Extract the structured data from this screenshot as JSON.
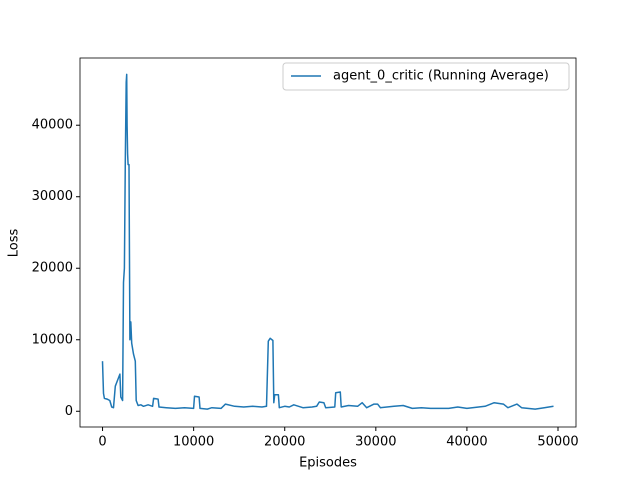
{
  "chart_data": {
    "type": "line",
    "xlabel": "Episodes",
    "ylabel": "Loss",
    "x": [
      0,
      100,
      200,
      500,
      800,
      1000,
      1200,
      1400,
      1700,
      1900,
      2000,
      2200,
      2300,
      2400,
      2500,
      2600,
      2650,
      2700,
      2750,
      2800,
      2900,
      3000,
      3100,
      3200,
      3400,
      3600,
      3700,
      3900,
      4200,
      4500,
      5000,
      5500,
      5600,
      6100,
      6200,
      7000,
      8000,
      9000,
      10000,
      10100,
      10600,
      10700,
      11500,
      12000,
      13000,
      13500,
      14500,
      15500,
      16500,
      17500,
      18000,
      18200,
      18400,
      18700,
      18800,
      18900,
      19300,
      19400,
      20000,
      20500,
      21000,
      22000,
      23000,
      23500,
      23800,
      24300,
      24500,
      25500,
      25600,
      26100,
      26200,
      27000,
      28000,
      28500,
      29000,
      29800,
      30200,
      30500,
      32000,
      33000,
      34000,
      35000,
      36000,
      38000,
      39000,
      40000,
      42000,
      43000,
      44000,
      44500,
      45500,
      46000,
      47500,
      48500,
      49500
    ],
    "series": [
      {
        "name": "agent_0_critic (Running Average)",
        "color": "#1f77b4",
        "values": [
          7000,
          2500,
          1800,
          1700,
          1500,
          600,
          500,
          3500,
          4500,
          5200,
          2000,
          1500,
          18000,
          20000,
          35000,
          46000,
          47100,
          40000,
          36000,
          34500,
          34500,
          10000,
          12500,
          9500,
          8000,
          7000,
          1500,
          800,
          900,
          700,
          900,
          700,
          1800,
          1700,
          600,
          500,
          400,
          500,
          400,
          2100,
          2000,
          400,
          300,
          500,
          400,
          1000,
          700,
          600,
          700,
          600,
          700,
          9800,
          10200,
          9900,
          1200,
          2300,
          2300,
          500,
          700,
          600,
          900,
          500,
          600,
          700,
          1300,
          1200,
          500,
          600,
          2600,
          2700,
          600,
          800,
          700,
          1200,
          500,
          1000,
          1000,
          500,
          700,
          800,
          400,
          500,
          400,
          400,
          600,
          400,
          700,
          1200,
          1000,
          500,
          1000,
          500,
          300,
          500,
          700
        ]
      }
    ],
    "xlim": [
      -2475,
      51975
    ],
    "ylim": [
      -2200,
      49400
    ],
    "xticks": [
      0,
      10000,
      20000,
      30000,
      40000,
      50000
    ],
    "yticks": [
      0,
      10000,
      20000,
      30000,
      40000
    ],
    "legend": "upper right"
  }
}
